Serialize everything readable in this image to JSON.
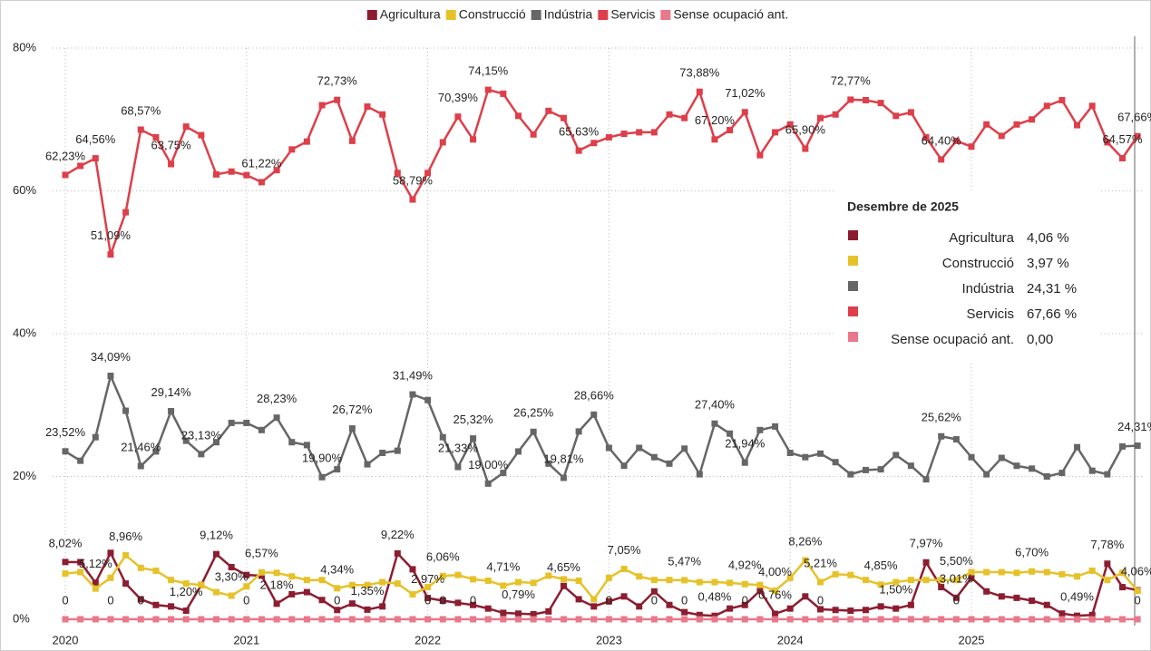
{
  "chart_data": {
    "type": "line",
    "categories": [
      "2020",
      null,
      null,
      null,
      null,
      null,
      null,
      null,
      null,
      null,
      null,
      null,
      "2021",
      null,
      null,
      null,
      null,
      null,
      null,
      null,
      null,
      null,
      null,
      null,
      "2022",
      null,
      null,
      null,
      null,
      null,
      null,
      null,
      null,
      null,
      null,
      null,
      "2023",
      null,
      null,
      null,
      null,
      null,
      null,
      null,
      null,
      null,
      null,
      null,
      "2024",
      null,
      null,
      null,
      null,
      null,
      null,
      null,
      null,
      null,
      null,
      null,
      "2025",
      null,
      null,
      null,
      null,
      null,
      null,
      null,
      null,
      null,
      null,
      null
    ],
    "ylim": [
      0,
      80
    ],
    "yticks": [
      {
        "value": 0,
        "label": "0%"
      },
      {
        "value": 20,
        "label": "20%"
      },
      {
        "value": 40,
        "label": "40%"
      },
      {
        "value": 60,
        "label": "60%"
      },
      {
        "value": 80,
        "label": "80%"
      }
    ],
    "grid": true,
    "legend": "top",
    "series": [
      {
        "name": "Agricultura",
        "color": "#8c1d30",
        "values": [
          8.02,
          8.0,
          5.12,
          9.3,
          5.0,
          2.8,
          2.0,
          1.8,
          1.2,
          4.8,
          9.12,
          7.3,
          6.2,
          6.1,
          2.18,
          3.5,
          3.8,
          2.7,
          1.3,
          2.2,
          1.35,
          1.8,
          9.22,
          7.0,
          2.97,
          2.6,
          2.3,
          2.0,
          1.5,
          0.9,
          0.79,
          0.7,
          1.1,
          4.65,
          2.8,
          1.8,
          2.5,
          3.2,
          1.8,
          3.9,
          2.0,
          1.0,
          0.6,
          0.48,
          1.5,
          2.0,
          4.0,
          0.76,
          1.5,
          3.2,
          1.4,
          1.3,
          1.2,
          1.3,
          1.8,
          1.5,
          2.0,
          7.97,
          4.5,
          3.01,
          5.8,
          3.9,
          3.2,
          3.0,
          2.6,
          2.0,
          0.8,
          0.49,
          0.6,
          7.78,
          4.5,
          4.06
        ],
        "value_labels": [
          "8,02%",
          null,
          "5,12%",
          null,
          null,
          null,
          null,
          null,
          "1,20%",
          null,
          "9,12%",
          null,
          null,
          null,
          "2,18%",
          null,
          null,
          null,
          null,
          null,
          "1,35%",
          null,
          "9,22%",
          null,
          "2,97%",
          null,
          null,
          null,
          null,
          null,
          "0,79%",
          null,
          null,
          "4,65%",
          null,
          null,
          null,
          null,
          null,
          null,
          null,
          null,
          null,
          "0,48%",
          null,
          null,
          null,
          "0,76%",
          null,
          null,
          null,
          null,
          null,
          null,
          null,
          "1,50%",
          null,
          "7,97%",
          null,
          "3,01%",
          null,
          null,
          null,
          null,
          null,
          null,
          null,
          "0,49%",
          null,
          "7,78%",
          null,
          "4,06%"
        ]
      },
      {
        "name": "Construcció",
        "color": "#e6c229",
        "values": [
          6.4,
          6.6,
          4.3,
          5.8,
          8.96,
          7.2,
          6.8,
          5.5,
          5.0,
          4.8,
          3.8,
          3.3,
          4.6,
          6.57,
          6.5,
          6.0,
          5.5,
          5.5,
          4.34,
          4.8,
          4.8,
          5.2,
          5.0,
          3.5,
          4.5,
          6.06,
          6.2,
          5.6,
          5.4,
          4.71,
          5.2,
          5.1,
          6.1,
          5.6,
          5.4,
          2.8,
          5.8,
          7.05,
          6.0,
          5.5,
          5.5,
          5.47,
          5.2,
          5.2,
          5.1,
          4.92,
          4.8,
          4.0,
          5.8,
          8.26,
          5.21,
          6.3,
          6.2,
          5.5,
          4.85,
          5.2,
          5.5,
          5.5,
          5.5,
          5.5,
          6.6,
          6.6,
          6.6,
          6.5,
          6.7,
          6.6,
          6.3,
          6.0,
          6.8,
          5.5,
          6.5,
          3.97
        ],
        "value_labels": [
          null,
          null,
          null,
          null,
          "8,96%",
          null,
          null,
          null,
          null,
          null,
          null,
          "3,30%",
          null,
          "6,57%",
          null,
          null,
          null,
          null,
          "4,34%",
          null,
          null,
          null,
          null,
          null,
          null,
          "6,06%",
          null,
          null,
          null,
          "4,71%",
          null,
          null,
          null,
          null,
          null,
          null,
          null,
          "7,05%",
          null,
          null,
          null,
          "5,47%",
          null,
          null,
          null,
          "4,92%",
          null,
          "4,00%",
          null,
          "8,26%",
          "5,21%",
          null,
          null,
          null,
          "4,85%",
          null,
          null,
          null,
          null,
          "5,50%",
          null,
          null,
          null,
          null,
          "6,70%",
          null,
          null,
          null,
          null,
          null,
          null,
          null
        ]
      },
      {
        "name": "Indústria",
        "color": "#666666",
        "values": [
          23.52,
          22.2,
          25.5,
          34.09,
          29.2,
          21.46,
          23.5,
          29.14,
          25.0,
          23.13,
          24.8,
          27.5,
          27.5,
          26.5,
          28.23,
          24.8,
          24.4,
          19.9,
          21.0,
          26.72,
          21.7,
          23.3,
          23.6,
          31.49,
          30.7,
          25.5,
          21.33,
          25.32,
          19.0,
          20.5,
          23.5,
          26.25,
          21.8,
          19.81,
          26.3,
          28.66,
          24.0,
          21.5,
          24.0,
          22.7,
          21.8,
          23.9,
          20.3,
          27.4,
          26.0,
          21.94,
          26.5,
          27.0,
          23.3,
          22.7,
          23.2,
          22.0,
          20.3,
          20.9,
          21.0,
          23.0,
          21.5,
          19.6,
          25.62,
          25.2,
          22.7,
          20.3,
          22.6,
          21.5,
          21.1,
          20.0,
          20.5,
          24.1,
          20.8,
          20.3,
          24.2,
          24.31
        ],
        "value_labels": [
          "23,52%",
          null,
          null,
          "34,09%",
          null,
          "21,46%",
          null,
          "29,14%",
          null,
          "23,13%",
          null,
          null,
          null,
          null,
          "28,23%",
          null,
          null,
          "19,90%",
          null,
          "26,72%",
          null,
          null,
          null,
          "31,49%",
          null,
          null,
          "21,33%",
          "25,32%",
          "19,00%",
          null,
          null,
          "26,25%",
          null,
          "19,81%",
          null,
          "28,66%",
          null,
          null,
          null,
          null,
          null,
          null,
          null,
          "27,40%",
          null,
          "21,94%",
          null,
          null,
          null,
          null,
          null,
          null,
          null,
          null,
          null,
          null,
          null,
          null,
          "25,62%",
          null,
          null,
          null,
          null,
          null,
          null,
          null,
          null,
          null,
          null,
          null,
          null,
          "24,31%"
        ]
      },
      {
        "name": "Servicis",
        "color": "#de3f4a",
        "values": [
          62.23,
          63.5,
          64.56,
          51.09,
          57.0,
          68.57,
          67.5,
          63.75,
          69.0,
          67.8,
          62.3,
          62.7,
          62.2,
          61.22,
          62.9,
          65.8,
          66.9,
          72.0,
          72.73,
          67.0,
          71.8,
          70.7,
          62.5,
          58.79,
          62.5,
          66.8,
          70.39,
          67.2,
          74.15,
          73.6,
          70.5,
          67.9,
          71.2,
          70.2,
          65.63,
          66.7,
          67.5,
          68.0,
          68.2,
          68.2,
          70.7,
          70.2,
          73.88,
          67.2,
          68.5,
          71.02,
          65.0,
          68.2,
          69.3,
          65.9,
          70.2,
          70.7,
          72.77,
          72.7,
          72.3,
          70.5,
          71.0,
          67.5,
          64.4,
          67.0,
          66.2,
          69.3,
          67.7,
          69.3,
          70.0,
          71.9,
          72.7,
          69.2,
          71.9,
          66.8,
          64.57,
          67.66
        ],
        "value_labels": [
          "62,23%",
          null,
          "64,56%",
          "51,09%",
          null,
          "68,57%",
          null,
          "63,75%",
          null,
          null,
          null,
          null,
          null,
          "61,22%",
          null,
          null,
          null,
          null,
          "72,73%",
          null,
          null,
          null,
          null,
          "58,79%",
          null,
          null,
          "70,39%",
          null,
          "74,15%",
          null,
          null,
          null,
          null,
          null,
          "65,63%",
          null,
          null,
          null,
          null,
          null,
          null,
          null,
          "73,88%",
          "67,20%",
          null,
          "71,02%",
          null,
          null,
          null,
          "65,90%",
          null,
          null,
          "72,77%",
          null,
          null,
          null,
          null,
          null,
          "64,40%",
          null,
          null,
          null,
          null,
          null,
          null,
          null,
          null,
          null,
          null,
          null,
          "64,57%",
          "67,66%"
        ]
      },
      {
        "name": "Sense ocupació ant.",
        "color": "#e8798a",
        "values": [
          0,
          0,
          0,
          0,
          0,
          0,
          0,
          0,
          0,
          0,
          0,
          0,
          0,
          0,
          0,
          0,
          0,
          0,
          0,
          0,
          0,
          0,
          0,
          0,
          0,
          0,
          0,
          0,
          0,
          0,
          0,
          0,
          0,
          0,
          0,
          0,
          0,
          0,
          0,
          0,
          0,
          0,
          0,
          0,
          0,
          0,
          0,
          0,
          0,
          0,
          0,
          0,
          0,
          0,
          0,
          0,
          0,
          0,
          0,
          0,
          0,
          0,
          0,
          0,
          0,
          0,
          0,
          0,
          0,
          0,
          0,
          0
        ],
        "value_labels": [
          "0",
          null,
          null,
          "0",
          null,
          "0",
          null,
          null,
          null,
          null,
          null,
          null,
          "0",
          null,
          null,
          null,
          null,
          null,
          "0",
          null,
          null,
          null,
          null,
          null,
          "0",
          "0",
          null,
          "0",
          null,
          null,
          null,
          null,
          null,
          null,
          null,
          null,
          "0",
          null,
          null,
          "0",
          null,
          "0",
          null,
          null,
          null,
          "0",
          null,
          null,
          null,
          null,
          "0",
          null,
          null,
          null,
          null,
          null,
          null,
          null,
          null,
          "0",
          null,
          null,
          null,
          null,
          null,
          null,
          null,
          null,
          null,
          null,
          null,
          "0"
        ]
      }
    ]
  },
  "tooltip": {
    "title": "Desembre de 2025",
    "rows": [
      {
        "name": "Agricultura",
        "value": "4,06 %"
      },
      {
        "name": "Construcció",
        "value": "3,97 %"
      },
      {
        "name": "Indústria",
        "value": "24,31 %"
      },
      {
        "name": "Servicis",
        "value": "67,66 %"
      },
      {
        "name": "Sense ocupació ant.",
        "value": "0,00"
      }
    ]
  }
}
